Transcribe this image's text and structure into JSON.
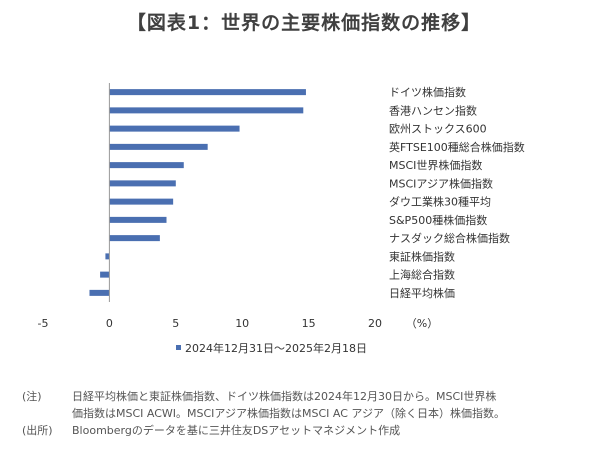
{
  "title": "【図表1：世界の主要株価指数の推移】",
  "chart_data": {
    "type": "bar",
    "orientation": "horizontal",
    "categories": [
      "ドイツ株価指数",
      "香港ハンセン指数",
      "欧州ストックス600",
      "英FTSE100種総合株価指数",
      "MSCI世界株価指数",
      "MSCIアジア株価指数",
      "ダウ工業株30種平均",
      "S&P500種株価指数",
      "ナスダック総合株価指数",
      "東証株価指数",
      "上海総合指数",
      "日経平均株価"
    ],
    "series": [
      {
        "name": "2024年12月31日～2025年2月18日",
        "values": [
          14.8,
          14.6,
          9.8,
          7.4,
          5.6,
          5.0,
          4.8,
          4.3,
          3.8,
          -0.3,
          -0.7,
          -1.5
        ]
      }
    ],
    "xlim": [
      -5,
      20
    ],
    "xticks": [
      -5,
      0,
      5,
      10,
      15,
      20
    ],
    "xunit": "（%）",
    "grid": false,
    "legend_position": "bottom",
    "colors": {
      "bar": "#4a6fb1",
      "axis": "#999999"
    }
  },
  "notes": [
    {
      "tag": "(注)",
      "lines": [
        "日経平均株価と東証株価指数、ドイツ株価指数は2024年12月30日から。MSCI世界株",
        "価指数はMSCI ACWI。MSCIアジア株価指数はMSCI AC アジア（除く日本）株価指数。"
      ]
    },
    {
      "tag": "(出所)",
      "lines": [
        "Bloombergのデータを基に三井住友DSアセットマネジメント作成"
      ]
    }
  ]
}
